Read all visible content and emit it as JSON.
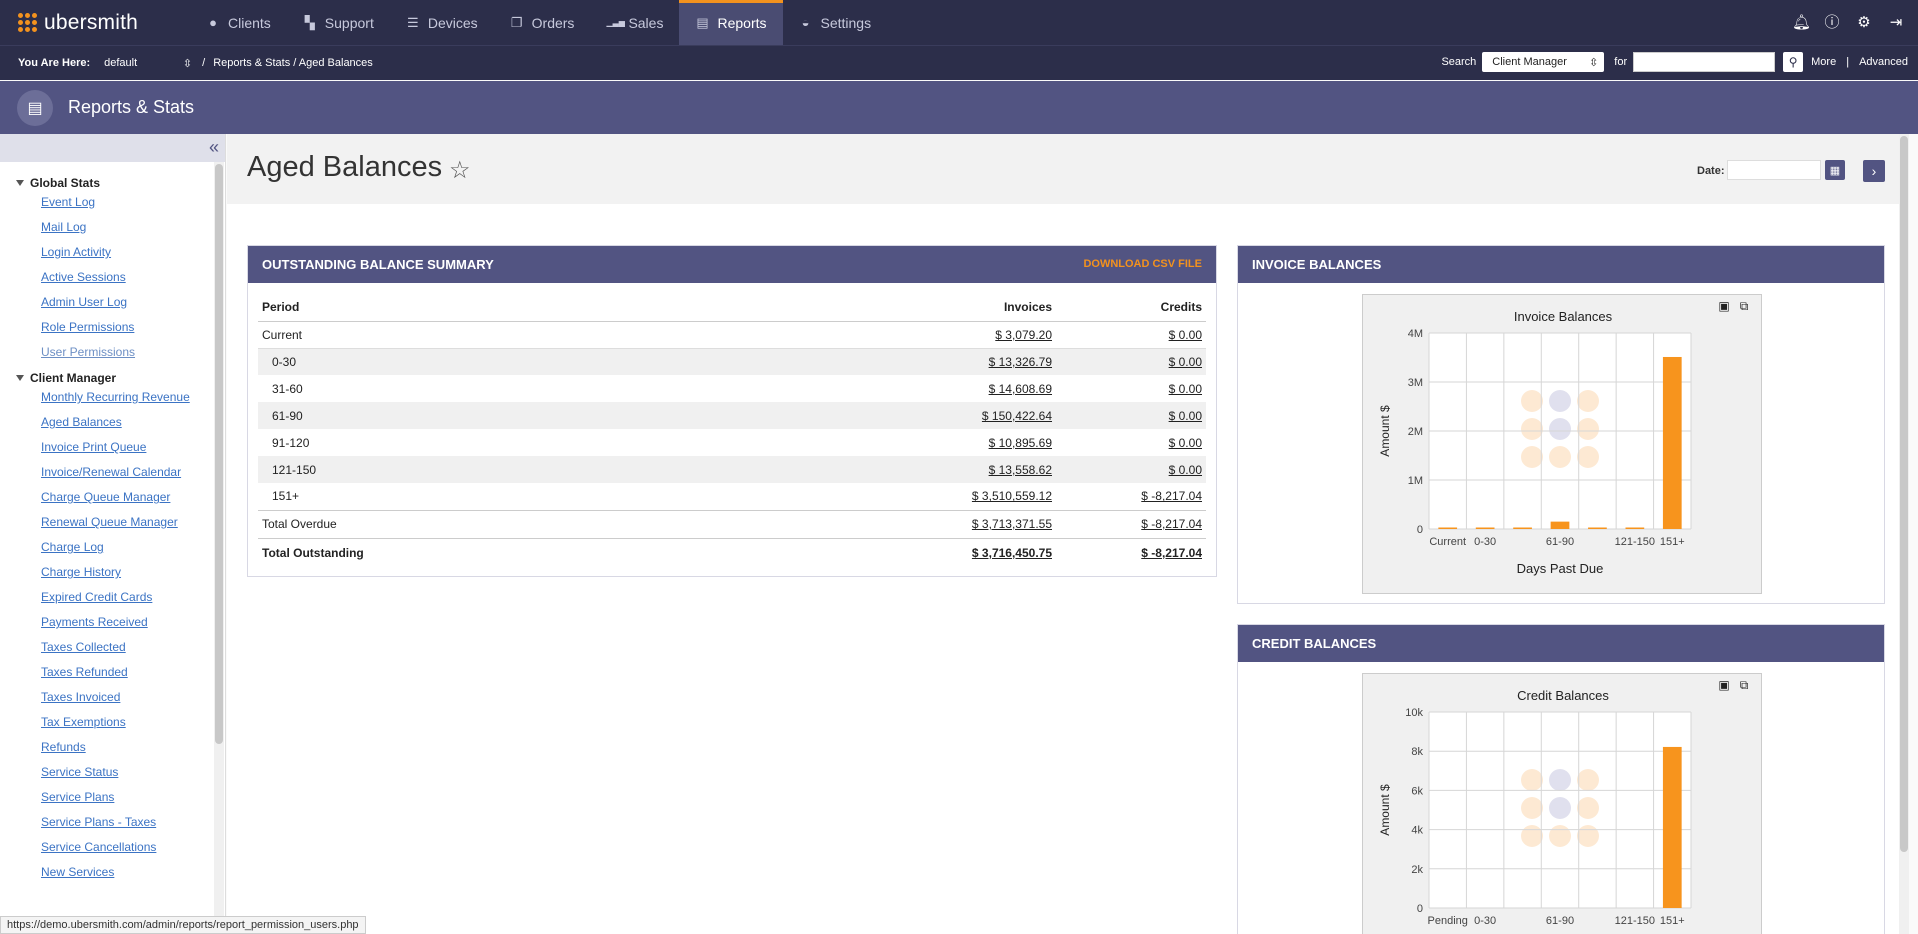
{
  "app": {
    "logo_text": "ubersmith"
  },
  "nav": {
    "items": [
      {
        "label": "Clients",
        "icon": "user-icon",
        "glyph": "●"
      },
      {
        "label": "Support",
        "icon": "ticket-icon",
        "glyph": "▚"
      },
      {
        "label": "Devices",
        "icon": "server-icon",
        "glyph": "☰"
      },
      {
        "label": "Orders",
        "icon": "orders-icon",
        "glyph": "❐"
      },
      {
        "label": "Sales",
        "icon": "bar-chart-icon",
        "glyph": "▁▃▅"
      },
      {
        "label": "Reports",
        "icon": "report-icon",
        "glyph": "▤"
      },
      {
        "label": "Settings",
        "icon": "settings-gauge-icon",
        "glyph": "◒"
      }
    ],
    "active": "Reports"
  },
  "breadcrumb": {
    "you_are_here": "You Are Here:",
    "brand": "default",
    "separator": "/",
    "path": "Reports & Stats / Aged Balances"
  },
  "search": {
    "label": "Search",
    "scope": "Client Manager",
    "for_label": "for",
    "value": "",
    "more": "More",
    "divider": "|",
    "advanced": "Advanced"
  },
  "section": {
    "title": "Reports & Stats"
  },
  "sidebar": {
    "groups": [
      {
        "title": "Global Stats",
        "items": [
          "Event Log",
          "Mail Log",
          "Login Activity",
          "Active Sessions",
          "Admin User Log",
          "Role Permissions",
          "User Permissions"
        ]
      },
      {
        "title": "Client Manager",
        "items": [
          "Monthly Recurring Revenue",
          "Aged Balances",
          "Invoice Print Queue",
          "Invoice/Renewal Calendar",
          "Charge Queue Manager",
          "Renewal Queue Manager",
          "Charge Log",
          "Charge History",
          "Expired Credit Cards",
          "Payments Received",
          "Taxes Collected",
          "Taxes Refunded",
          "Taxes Invoiced",
          "Tax Exemptions",
          "Refunds",
          "Service Status",
          "Service Plans",
          "Service Plans - Taxes",
          "Service Cancellations",
          "New Services"
        ]
      }
    ]
  },
  "page": {
    "title": "Aged Balances",
    "date_label": "Date:",
    "date_value": ""
  },
  "summary": {
    "title": "OUTSTANDING BALANCE SUMMARY",
    "download": "DOWNLOAD CSV FILE",
    "headers": {
      "period": "Period",
      "invoices": "Invoices",
      "credits": "Credits"
    },
    "rows": [
      {
        "period": "Current",
        "invoices": "$ 3,079.20",
        "credits": "$ 0.00"
      },
      {
        "period": "0-30",
        "invoices": "$ 13,326.79",
        "credits": "$ 0.00"
      },
      {
        "period": "31-60",
        "invoices": "$ 14,608.69",
        "credits": "$ 0.00"
      },
      {
        "period": "61-90",
        "invoices": "$ 150,422.64",
        "credits": "$ 0.00"
      },
      {
        "period": "91-120",
        "invoices": "$ 10,895.69",
        "credits": "$ 0.00"
      },
      {
        "period": "121-150",
        "invoices": "$ 13,558.62",
        "credits": "$ 0.00"
      },
      {
        "period": "151+",
        "invoices": "$ 3,510,559.12",
        "credits": "$ -8,217.04"
      }
    ],
    "total_overdue": {
      "period": "Total Overdue",
      "invoices": "$ 3,713,371.55",
      "credits": "$ -8,217.04"
    },
    "total_outstanding": {
      "period": "Total Outstanding",
      "invoices": "$ 3,716,450.75",
      "credits": "$ -8,217.04"
    }
  },
  "invoice_panel": {
    "title": "INVOICE BALANCES"
  },
  "credit_panel": {
    "title": "CREDIT BALANCES"
  },
  "chart_data": [
    {
      "type": "bar",
      "title": "Invoice Balances",
      "xlabel": "Days Past Due",
      "ylabel": "Amount $",
      "categories": [
        "Current",
        "0-30",
        "31-60",
        "61-90",
        "91-120",
        "121-150",
        "151+"
      ],
      "tick_labels": [
        "Current",
        "0-30",
        "",
        "61-90",
        "",
        "121-150",
        "151+"
      ],
      "values": [
        3079.2,
        13326.79,
        14608.69,
        150422.64,
        10895.69,
        13558.62,
        3510559.12
      ],
      "ylim": [
        0,
        4000000
      ],
      "yticks": [
        0,
        1000000,
        2000000,
        3000000,
        4000000
      ],
      "ytick_labels": [
        "0",
        "1M",
        "2M",
        "3M",
        "4M"
      ],
      "grid": true,
      "bar_color": "#f7941d"
    },
    {
      "type": "bar",
      "title": "Credit Balances",
      "xlabel": "",
      "ylabel": "Amount $",
      "categories": [
        "Pending",
        "0-30",
        "31-60",
        "61-90",
        "91-120",
        "121-150",
        "151+"
      ],
      "tick_labels": [
        "Pending",
        "0-30",
        "",
        "61-90",
        "",
        "121-150",
        "151+"
      ],
      "values": [
        0,
        0,
        0,
        0,
        0,
        0,
        8217.04
      ],
      "ylim": [
        0,
        10000
      ],
      "yticks": [
        0,
        2000,
        4000,
        6000,
        8000,
        10000
      ],
      "ytick_labels": [
        "0",
        "2k",
        "4k",
        "6k",
        "8k",
        "10k"
      ],
      "grid": true,
      "bar_color": "#f7941d"
    }
  ],
  "status_bar": {
    "url": "https://demo.ubersmith.com/admin/reports/report_permission_users.php"
  },
  "colors": {
    "nav_bg": "#2c2e4a",
    "accent": "#f3921e",
    "panel_header": "#525482",
    "link": "#3b73c4"
  }
}
